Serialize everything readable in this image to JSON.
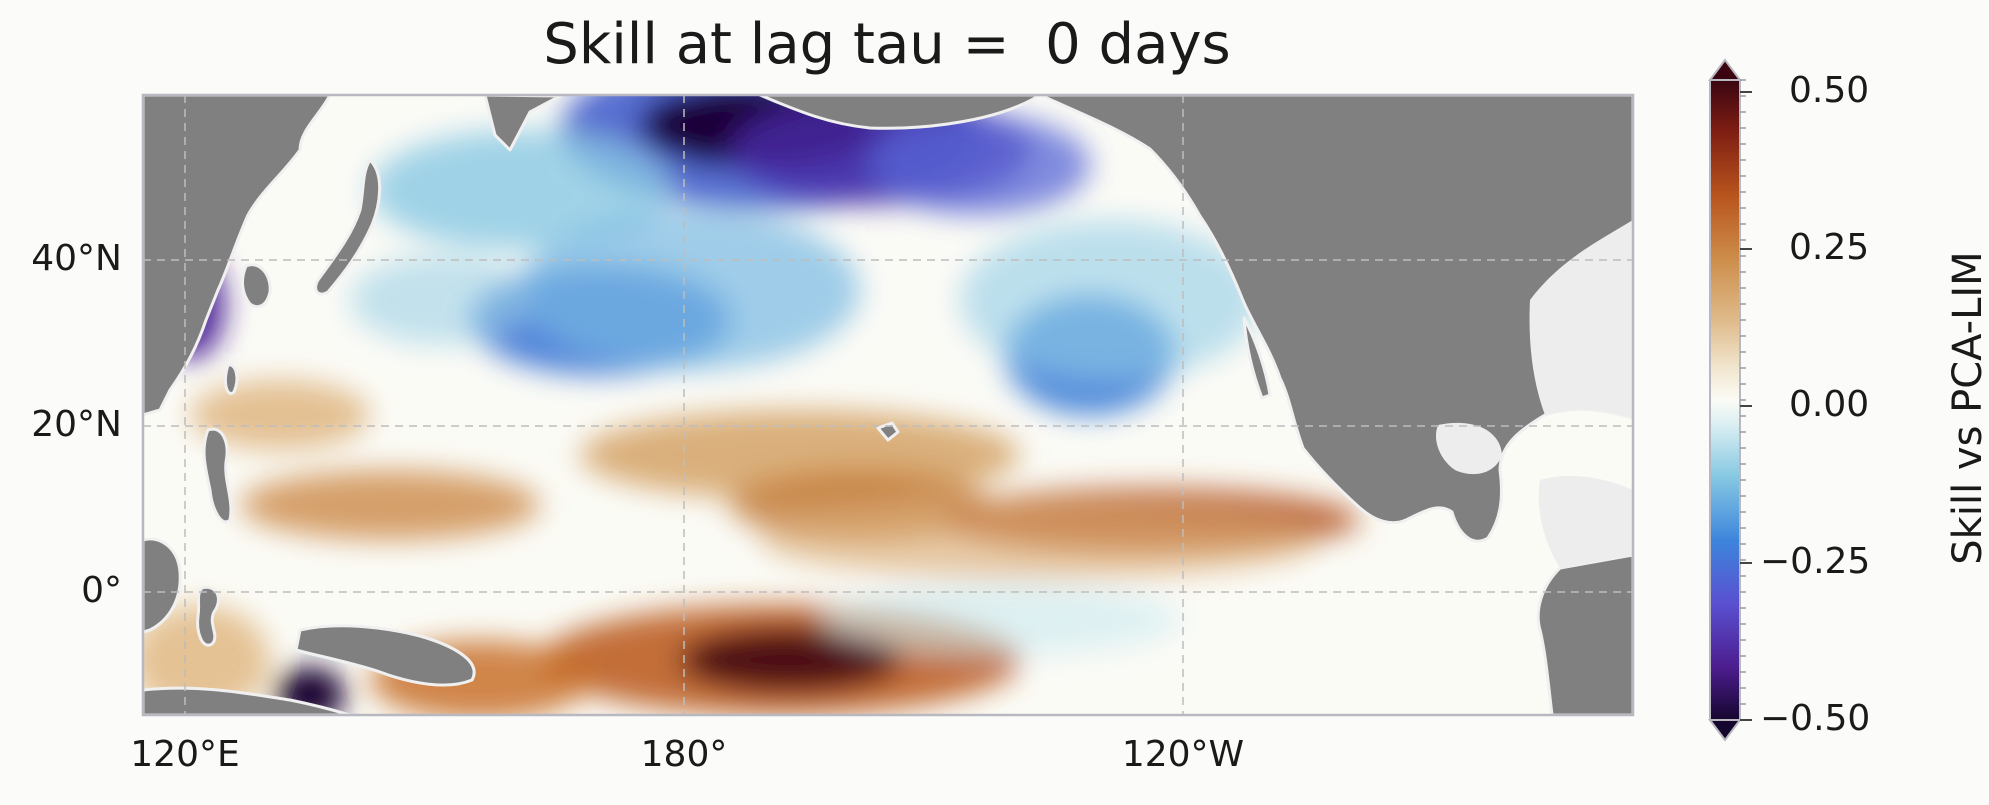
{
  "title": "Skill at lag tau =  0 days",
  "map": {
    "projection": "PlateCarree",
    "extent": {
      "lon_min": 115,
      "lon_max": 295,
      "lat_min": -15,
      "lat_max": 60
    },
    "land_color": "#808080",
    "ocean_mask_color": "#ededed",
    "gridlines": "dashed",
    "x_ticks": [
      {
        "lon": 120,
        "label": "120°E"
      },
      {
        "lon": 180,
        "label": "180°"
      },
      {
        "lon": 240,
        "label": "120°W"
      }
    ],
    "y_ticks": [
      {
        "lat": 40,
        "label": "40°N"
      },
      {
        "lat": 20,
        "label": "20°N"
      },
      {
        "lat": 0,
        "label": "0°"
      }
    ]
  },
  "field_features": [
    {
      "region": "northern Gulf of Alaska / Aleutians",
      "lon": 189,
      "lat": 57,
      "value": -0.5
    },
    {
      "region": "Bering Sea",
      "lon": 185,
      "lat": 53,
      "value": -0.38
    },
    {
      "region": "northwest Pacific",
      "lon": 172,
      "lat": 30,
      "value": -0.25
    },
    {
      "region": "subtropical northeast Pacific",
      "lon": 228,
      "lat": 28,
      "value": -0.22
    },
    {
      "region": "Sea of Japan coast",
      "lon": 120,
      "lat": 36,
      "value": -0.4
    },
    {
      "region": "South Pacific convergence zone",
      "lon": 193,
      "lat": -8,
      "value": 0.5
    },
    {
      "region": "Coral Sea",
      "lon": 146,
      "lat": -12,
      "value": 0.3
    },
    {
      "region": "equatorial North Pacific band",
      "lon": 235,
      "lat": 8,
      "value": 0.38
    },
    {
      "region": "subtropical band",
      "lon": 180,
      "lat": 17,
      "value": 0.22
    },
    {
      "region": "western Pacific band",
      "lon": 140,
      "lat": 10,
      "value": 0.2
    },
    {
      "region": "New Guinea",
      "lon": 134,
      "lat": -10,
      "value": -0.5
    }
  ],
  "colorbar": {
    "label": "Skill vs PCA-LIM",
    "colormap": "diverging (purple–blue–white–orange–dark red)",
    "vmin": -0.5,
    "vmax": 0.5,
    "extend": "both",
    "ticks": [
      {
        "value": 0.5,
        "label": "0.50"
      },
      {
        "value": 0.25,
        "label": "0.25"
      },
      {
        "value": 0.0,
        "label": "0.00"
      },
      {
        "value": -0.25,
        "label": "−0.25"
      },
      {
        "value": -0.5,
        "label": "−0.50"
      }
    ],
    "stops": [
      {
        "value": -0.5,
        "color": "#15062e"
      },
      {
        "value": -0.42,
        "color": "#4b1c8c"
      },
      {
        "value": -0.32,
        "color": "#5a4fd0"
      },
      {
        "value": -0.22,
        "color": "#3d85dc"
      },
      {
        "value": -0.12,
        "color": "#86c8e2"
      },
      {
        "value": -0.04,
        "color": "#d9eef2"
      },
      {
        "value": 0.0,
        "color": "#fbfbf6"
      },
      {
        "value": 0.05,
        "color": "#f1e6cf"
      },
      {
        "value": 0.12,
        "color": "#e0bd8e"
      },
      {
        "value": 0.22,
        "color": "#cd8d4a"
      },
      {
        "value": 0.32,
        "color": "#b8541d"
      },
      {
        "value": 0.42,
        "color": "#7e1e13"
      },
      {
        "value": 0.5,
        "color": "#3a0511"
      }
    ]
  }
}
